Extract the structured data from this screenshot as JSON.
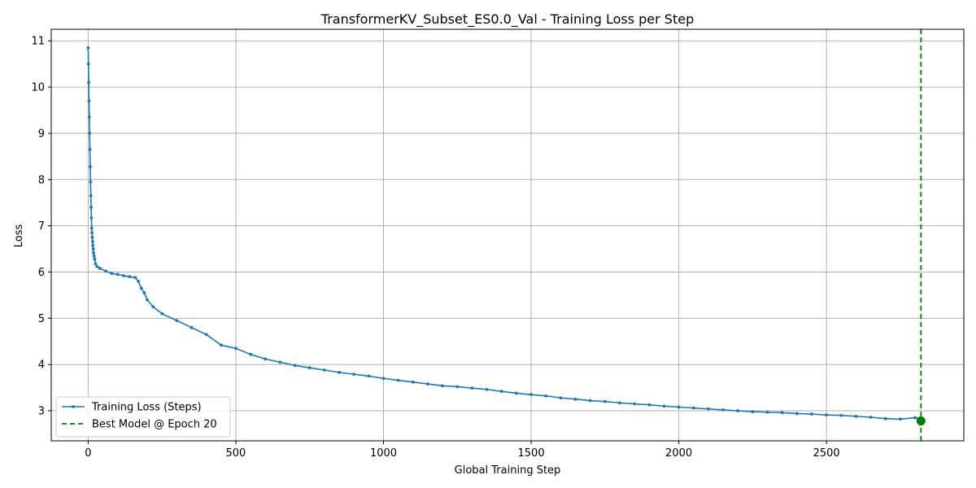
{
  "chart_data": {
    "type": "line",
    "title": "TransformerKV_Subset_ES0.0_Val - Training Loss per Step",
    "xlabel": "Global Training Step",
    "ylabel": "Loss",
    "xlim": [
      -125,
      2965
    ],
    "ylim": [
      2.35,
      11.25
    ],
    "xticks": [
      0,
      500,
      1000,
      1500,
      2000,
      2500
    ],
    "yticks": [
      3,
      4,
      5,
      6,
      7,
      8,
      9,
      10,
      11
    ],
    "grid": true,
    "legend_position": "lower-left",
    "series": [
      {
        "name": "Training Loss (Steps)",
        "color": "#1f77b4",
        "marker": "dot",
        "points": [
          [
            0,
            10.85
          ],
          [
            1,
            10.5
          ],
          [
            2,
            10.1
          ],
          [
            3,
            9.7
          ],
          [
            4,
            9.35
          ],
          [
            5,
            9.0
          ],
          [
            6,
            8.65
          ],
          [
            7,
            8.28
          ],
          [
            8,
            7.95
          ],
          [
            9,
            7.65
          ],
          [
            10,
            7.4
          ],
          [
            11,
            7.17
          ],
          [
            12,
            6.95
          ],
          [
            13,
            6.85
          ],
          [
            14,
            6.75
          ],
          [
            15,
            6.66
          ],
          [
            16,
            6.58
          ],
          [
            17,
            6.5
          ],
          [
            18,
            6.42
          ],
          [
            20,
            6.35
          ],
          [
            22,
            6.28
          ],
          [
            25,
            6.18
          ],
          [
            30,
            6.12
          ],
          [
            40,
            6.08
          ],
          [
            60,
            6.02
          ],
          [
            80,
            5.97
          ],
          [
            100,
            5.95
          ],
          [
            120,
            5.92
          ],
          [
            140,
            5.9
          ],
          [
            160,
            5.88
          ],
          [
            170,
            5.8
          ],
          [
            180,
            5.65
          ],
          [
            190,
            5.55
          ],
          [
            200,
            5.4
          ],
          [
            220,
            5.25
          ],
          [
            250,
            5.1
          ],
          [
            300,
            4.95
          ],
          [
            350,
            4.8
          ],
          [
            400,
            4.65
          ],
          [
            450,
            4.42
          ],
          [
            500,
            4.35
          ],
          [
            550,
            4.22
          ],
          [
            600,
            4.12
          ],
          [
            650,
            4.05
          ],
          [
            700,
            3.98
          ],
          [
            750,
            3.93
          ],
          [
            800,
            3.88
          ],
          [
            850,
            3.83
          ],
          [
            900,
            3.79
          ],
          [
            950,
            3.75
          ],
          [
            1000,
            3.7
          ],
          [
            1050,
            3.66
          ],
          [
            1100,
            3.62
          ],
          [
            1150,
            3.58
          ],
          [
            1200,
            3.54
          ],
          [
            1250,
            3.52
          ],
          [
            1300,
            3.49
          ],
          [
            1350,
            3.46
          ],
          [
            1400,
            3.42
          ],
          [
            1450,
            3.38
          ],
          [
            1500,
            3.35
          ],
          [
            1550,
            3.32
          ],
          [
            1600,
            3.28
          ],
          [
            1650,
            3.25
          ],
          [
            1700,
            3.22
          ],
          [
            1750,
            3.2
          ],
          [
            1800,
            3.17
          ],
          [
            1850,
            3.15
          ],
          [
            1900,
            3.13
          ],
          [
            1950,
            3.1
          ],
          [
            2000,
            3.08
          ],
          [
            2050,
            3.06
          ],
          [
            2100,
            3.04
          ],
          [
            2150,
            3.02
          ],
          [
            2200,
            3.0
          ],
          [
            2250,
            2.98
          ],
          [
            2300,
            2.97
          ],
          [
            2350,
            2.96
          ],
          [
            2400,
            2.94
          ],
          [
            2450,
            2.93
          ],
          [
            2500,
            2.91
          ],
          [
            2550,
            2.9
          ],
          [
            2600,
            2.88
          ],
          [
            2650,
            2.86
          ],
          [
            2700,
            2.83
          ],
          [
            2750,
            2.82
          ],
          [
            2800,
            2.85
          ],
          [
            2820,
            2.83
          ]
        ]
      },
      {
        "name": "Best Model @ Epoch 20",
        "color": "#008000",
        "style": "dashed-vertical",
        "x": 2820
      }
    ],
    "best_point": {
      "x": 2820,
      "y": 2.78,
      "color": "#008000"
    }
  }
}
